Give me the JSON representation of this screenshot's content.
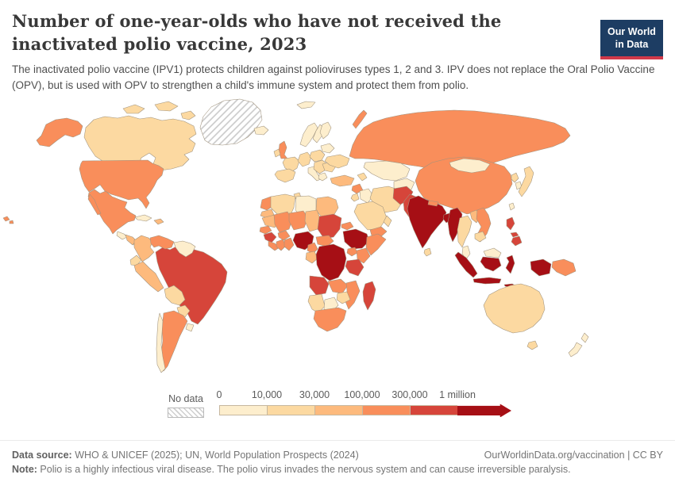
{
  "header": {
    "title": "Number of one-year-olds who have not received the inactivated polio vaccine, 2023",
    "subtitle": "The inactivated polio vaccine (IPV1) protects children against polioviruses types 1, 2 and 3. IPV does not replace the Oral Polio Vaccine (OPV), but is used with OPV to strengthen a child's immune system and protect them from polio.",
    "logo": {
      "line1": "Our World",
      "line2": "in Data",
      "bg_color": "#1d3d63",
      "accent_color": "#d0394a"
    }
  },
  "legend": {
    "no_data_label": "No data",
    "tick_labels": [
      "0",
      "10,000",
      "30,000",
      "100,000",
      "300,000",
      "1 million"
    ],
    "colors": [
      "#fdeecd",
      "#fcd9a1",
      "#fdba7d",
      "#f98e5b",
      "#d6453a",
      "#a60f15"
    ]
  },
  "chart_data": {
    "type": "choropleth-map",
    "title": "Number of one-year-olds who have not received the inactivated polio vaccine, 2023",
    "legend_bins": [
      "0",
      "10,000",
      "30,000",
      "100,000",
      "300,000",
      "1 million"
    ],
    "legend_position": "bottom",
    "no_data_style": "hatched",
    "bucket_meaning": "1=0-10k, 2=10k-30k, 3=30k-100k, 4=100k-300k, 5=300k-1M, 6=1M+, 0=no data"
  },
  "map": {
    "border_color": "#a0937e",
    "countries": {
      "greenland": 0,
      "svalbard": 1,
      "canada": 2,
      "alaska": 4,
      "hawaii": 4,
      "usa": 4,
      "mexico": 4,
      "guatemala": 1,
      "honduras-nicaragua": 3,
      "costa-rica-panama": 2,
      "cuba": 1,
      "hispaniola": 3,
      "colombia": 3,
      "venezuela": 4,
      "guyanas": 1,
      "ecuador": 2,
      "peru": 3,
      "brazil": 5,
      "bolivia": 2,
      "paraguay": 2,
      "argentina": 4,
      "chile": 1,
      "uruguay": 1,
      "iceland": 1,
      "norway": 1,
      "sweden": 1,
      "finland": 1,
      "uk": 4,
      "ireland": 2,
      "france": 2,
      "iberia": 2,
      "germany": 2,
      "italy": 1,
      "poland": 2,
      "baltics": 1,
      "balkans": 2,
      "greece": 1,
      "romania": 2,
      "ukraine": 2,
      "turkey": 3,
      "russia": 4,
      "kazakhstan": 1,
      "central-asia": 1,
      "caucasus": 2,
      "syria": 4,
      "iraq": 1,
      "iran": 2,
      "saudi-arabia": 2,
      "yemen": 4,
      "oman": 2,
      "jordan-israel": 2,
      "afghanistan": 5,
      "pakistan": 5,
      "india": 6,
      "nepal": 4,
      "sri-lanka": 2,
      "bangladesh": 6,
      "myanmar": 6,
      "china": 4,
      "mongolia": 1,
      "north-korea": 2,
      "south-korea": 1,
      "japan": 2,
      "taiwan": 1,
      "thailand": 2,
      "laos": 3,
      "vietnam": 4,
      "cambodia": 2,
      "malaysia": 1,
      "indonesia": 6,
      "philippines": 5,
      "papua-new-guinea": 4,
      "australia": 2,
      "new-zealand": 1,
      "morocco": 4,
      "western-sahara": 3,
      "algeria": 2,
      "tunisia": 2,
      "libya": 1,
      "egypt": 3,
      "mauritania": 3,
      "mali": 4,
      "niger": 4,
      "chad": 3,
      "sudan": 5,
      "senegal": 4,
      "guinea": 5,
      "sierra-leone-liberia": 4,
      "ivory-coast": 4,
      "ghana-togo-benin": 4,
      "burkina-faso": 4,
      "nigeria": 6,
      "cameroon": 4,
      "car": 4,
      "eritrea": 4,
      "ethiopia": 6,
      "somalia": 4,
      "gabon-congo": 3,
      "drc": 6,
      "uganda": 4,
      "kenya": 4,
      "tanzania": 5,
      "angola": 5,
      "zambia": 4,
      "mozambique": 4,
      "zimbabwe": 2,
      "namibia": 2,
      "botswana": 1,
      "south-africa": 4,
      "madagascar": 5
    }
  },
  "footer": {
    "source_label": "Data source:",
    "source_text": " WHO & UNICEF (2025); UN, World Population Prospects (2024)",
    "link_text": "OurWorldinData.org/vaccination | CC BY",
    "note_label": "Note:",
    "note_text": " Polio is a highly infectious viral disease. The polio virus invades the nervous system and can cause irreversible paralysis."
  }
}
